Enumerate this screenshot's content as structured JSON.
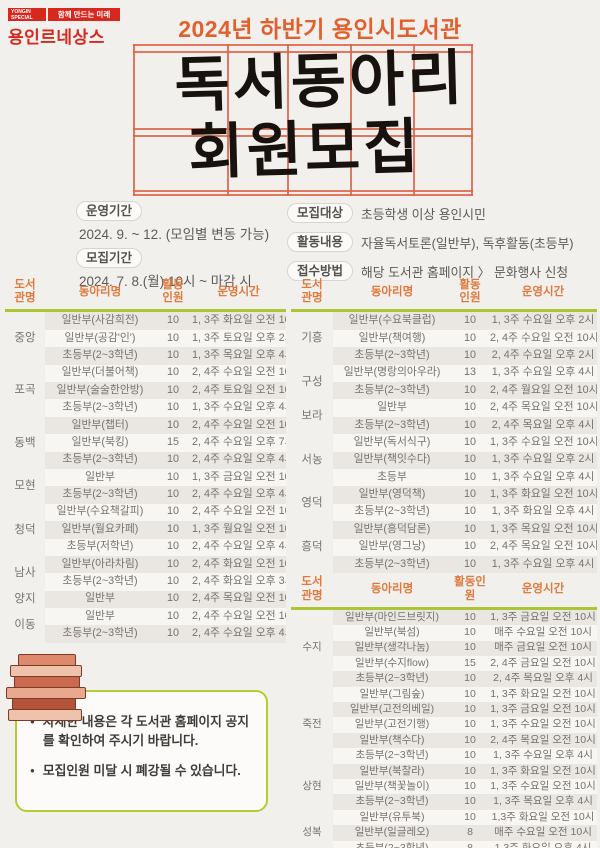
{
  "logo": {
    "city": "YONGIN SPECIAL CITY",
    "slogan": "함께 만드는 미래",
    "name": "용인르네상스",
    "color": "#d6281e"
  },
  "header": {
    "subtitle": "2024년 하반기 용인시도서관",
    "title_line1": "독서동아리",
    "title_line2": "회원모집",
    "accent_color": "#e2602f",
    "grid_color": "#dd6246"
  },
  "info": {
    "left": [
      {
        "label": "운영기간",
        "value": "2024. 9. ~ 12. (모임별 변동 가능)"
      },
      {
        "label": "모집기간",
        "value": "2024. 7. 8.(월) 10시 ~ 마감 시"
      }
    ],
    "right": [
      {
        "label": "모집대상",
        "value": "초등학생 이상 용인시민"
      },
      {
        "label": "활동내용",
        "value": "자율독서토론(일반부), 독후활동(초등부)"
      },
      {
        "label": "접수방법",
        "value": "해당 도서관 홈페이지 〉 문화행사 신청"
      }
    ]
  },
  "tables": {
    "header_color": "#e0793d",
    "divider_color": "#abc634",
    "left": {
      "headers": [
        "도서\n관명",
        "동아리명",
        "활동\n인원",
        "운영시간"
      ],
      "groups": [
        {
          "library": "중앙",
          "rows": [
            {
              "club": "일반부(사감희전)",
              "count": "10",
              "time": "1, 3주 화요일 오전 10시"
            },
            {
              "club": "일반부(공감'인')",
              "count": "10",
              "time": "1, 3주 토요일 오후 2시"
            },
            {
              "club": "초등부(2~3학년)",
              "count": "10",
              "time": "1, 3주 목요일 오후 4시"
            }
          ]
        },
        {
          "library": "포곡",
          "rows": [
            {
              "club": "일반부(더불어책)",
              "count": "10",
              "time": "2, 4주 수요일 오전 10시"
            },
            {
              "club": "일반부(술술한안방)",
              "count": "10",
              "time": "2, 4주 토요일 오전 10시"
            },
            {
              "club": "초등부(2~3학년)",
              "count": "10",
              "time": "1, 3주 수요일 오후 4시"
            }
          ]
        },
        {
          "library": "동백",
          "rows": [
            {
              "club": "일반부(챕터)",
              "count": "10",
              "time": "2, 4주 수요일 오전 10시30분"
            },
            {
              "club": "일반부(북킹)",
              "count": "15",
              "time": "2, 4주 수요일 오후 7시30분"
            },
            {
              "club": "초등부(2~3학년)",
              "count": "10",
              "time": "2, 4주 수요일 오후 4시"
            }
          ]
        },
        {
          "library": "모현",
          "rows": [
            {
              "club": "일반부",
              "count": "10",
              "time": "1, 3주 금요일 오전 10시"
            },
            {
              "club": "초등부(2~3학년)",
              "count": "10",
              "time": "2, 4주 수요일 오후 4시"
            }
          ]
        },
        {
          "library": "청덕",
          "rows": [
            {
              "club": "일반부(수요책갈피)",
              "count": "10",
              "time": "2, 4주 수요일 오전 10시"
            },
            {
              "club": "일반부(월요카페)",
              "count": "10",
              "time": "1, 3주 월요일 오전 10시"
            },
            {
              "club": "초등부(저학년)",
              "count": "10",
              "time": "2, 4주 수요일 오후 4시"
            }
          ]
        },
        {
          "library": "남사",
          "rows": [
            {
              "club": "일반부(아라차림)",
              "count": "10",
              "time": "2, 4주 화요일 오전 10시"
            },
            {
              "club": "초등부(2~3학년)",
              "count": "10",
              "time": "2, 4주 화요일 오후 3시"
            }
          ]
        },
        {
          "library": "양지",
          "rows": [
            {
              "club": "일반부",
              "count": "10",
              "time": "2, 4주 목요일 오전 10시"
            }
          ]
        },
        {
          "library": "이동",
          "rows": [
            {
              "club": "일반부",
              "count": "10",
              "time": "2, 4주 수요일 오전 10시"
            },
            {
              "club": "초등부(2~3학년)",
              "count": "10",
              "time": "2, 4주 수요일 오후 4시"
            }
          ]
        }
      ]
    },
    "right1": {
      "headers": [
        "도서\n관명",
        "동아리명",
        "활동\n인원",
        "운영시간"
      ],
      "groups": [
        {
          "library": "기흥",
          "rows": [
            {
              "club": "일반부(수요북클럽)",
              "count": "10",
              "time": "1, 3주 수요일 오후 2시"
            },
            {
              "club": "일반부(책여행)",
              "count": "10",
              "time": "2, 4주 수요일 오전 10시"
            },
            {
              "club": "초등부(2~3학년)",
              "count": "10",
              "time": "2, 4주 수요일 오후 2시"
            }
          ]
        },
        {
          "library": "구성",
          "rows": [
            {
              "club": "일반부(명랑의아우라)",
              "count": "13",
              "time": "1, 3주 수요일 오후 4시"
            },
            {
              "club": "초등부(2~3학년)",
              "count": "10",
              "time": "2, 4주 월요일 오전 10시"
            }
          ]
        },
        {
          "library": "보라",
          "rows": [
            {
              "club": "일반부",
              "count": "10",
              "time": "2, 4주 목요일 오전 10시"
            },
            {
              "club": "초등부(2~3학년)",
              "count": "10",
              "time": "2, 4주 목요일 오후 4시"
            }
          ]
        },
        {
          "library": "서농",
          "rows": [
            {
              "club": "일반부(독서식구)",
              "count": "10",
              "time": "1, 3주 수요일 오전 10시"
            },
            {
              "club": "일반부(책잇수다)",
              "count": "10",
              "time": "1, 3주 수요일 오후 2시"
            },
            {
              "club": "초등부",
              "count": "10",
              "time": "1, 3주 수요일 오후 4시"
            }
          ]
        },
        {
          "library": "영덕",
          "rows": [
            {
              "club": "일반부(영덕책)",
              "count": "10",
              "time": "1, 3주 화요일 오전 10시"
            },
            {
              "club": "초등부(2~3학년)",
              "count": "10",
              "time": "1, 3주 화요일 오후 4시"
            }
          ]
        },
        {
          "library": "흥덕",
          "rows": [
            {
              "club": "일반부(흥덕담론)",
              "count": "10",
              "time": "1, 3주 목요일 오전 10시"
            },
            {
              "club": "일반부(영그낭)",
              "count": "10",
              "time": "2, 4주 목요일 오전 10시"
            },
            {
              "club": "초등부(2~3학년)",
              "count": "10",
              "time": "1, 3주 수요일 오후 4시"
            }
          ]
        }
      ]
    },
    "right2": {
      "headers": [
        "도서\n관명",
        "동아리명",
        "활동인\n원",
        "운영시간"
      ],
      "groups": [
        {
          "library": "수지",
          "rows": [
            {
              "club": "일반부(마인드브릿지)",
              "count": "10",
              "time": "1, 3주 금요일 오전 10시"
            },
            {
              "club": "일반부(북섬)",
              "count": "10",
              "time": "매주 수요일 오전 10시"
            },
            {
              "club": "일반부(생각나눔)",
              "count": "10",
              "time": "매주 금요일 오전 10시"
            },
            {
              "club": "일반부(수지flow)",
              "count": "15",
              "time": "2, 4주 금요일 오전 10시"
            },
            {
              "club": "초등부(2~3학년)",
              "count": "10",
              "time": "2, 4주 목요일 오후 4시"
            }
          ]
        },
        {
          "library": "죽전",
          "rows": [
            {
              "club": "일반부(그림숲)",
              "count": "10",
              "time": "1, 3주 화요일 오전 10시"
            },
            {
              "club": "일반부(고전의베일)",
              "count": "10",
              "time": "1, 3주 금요일 오전 10시"
            },
            {
              "club": "일반부(고전기행)",
              "count": "10",
              "time": "1, 3주 수요일 오전 10시"
            },
            {
              "club": "일반부(책수다)",
              "count": "10",
              "time": "2, 4주 목요일 오전 10시"
            },
            {
              "club": "초등부(2~3학년)",
              "count": "10",
              "time": "1, 3주 수요일 오후 4시"
            }
          ]
        },
        {
          "library": "상현",
          "rows": [
            {
              "club": "일반부(북찰라)",
              "count": "10",
              "time": "1, 3주 화요일 오전 10시"
            },
            {
              "club": "일반부(책꽃놀이)",
              "count": "10",
              "time": "1, 3주 수요일 오전 10시"
            },
            {
              "club": "초등부(2~3학년)",
              "count": "10",
              "time": "1, 3주 목요일 오후 4시"
            }
          ]
        },
        {
          "library": "성복",
          "rows": [
            {
              "club": "일반부(유투북)",
              "count": "10",
              "time": "1,3주 화요일 오전 10시"
            },
            {
              "club": "일반부(일글레오)",
              "count": "8",
              "time": "매주 수요일 오전 10시"
            },
            {
              "club": "초등부(2~3학년)",
              "count": "8",
              "time": "1,3주 화요일 오후 4시"
            }
          ]
        }
      ]
    }
  },
  "notice": {
    "border_color": "#b3cb35",
    "items": [
      "자세한 내용은 각 도서관 홈페이지 공지를 확인하여 주시기 바랍니다.",
      "모집인원 미달 시 폐강될 수 있습니다."
    ]
  }
}
